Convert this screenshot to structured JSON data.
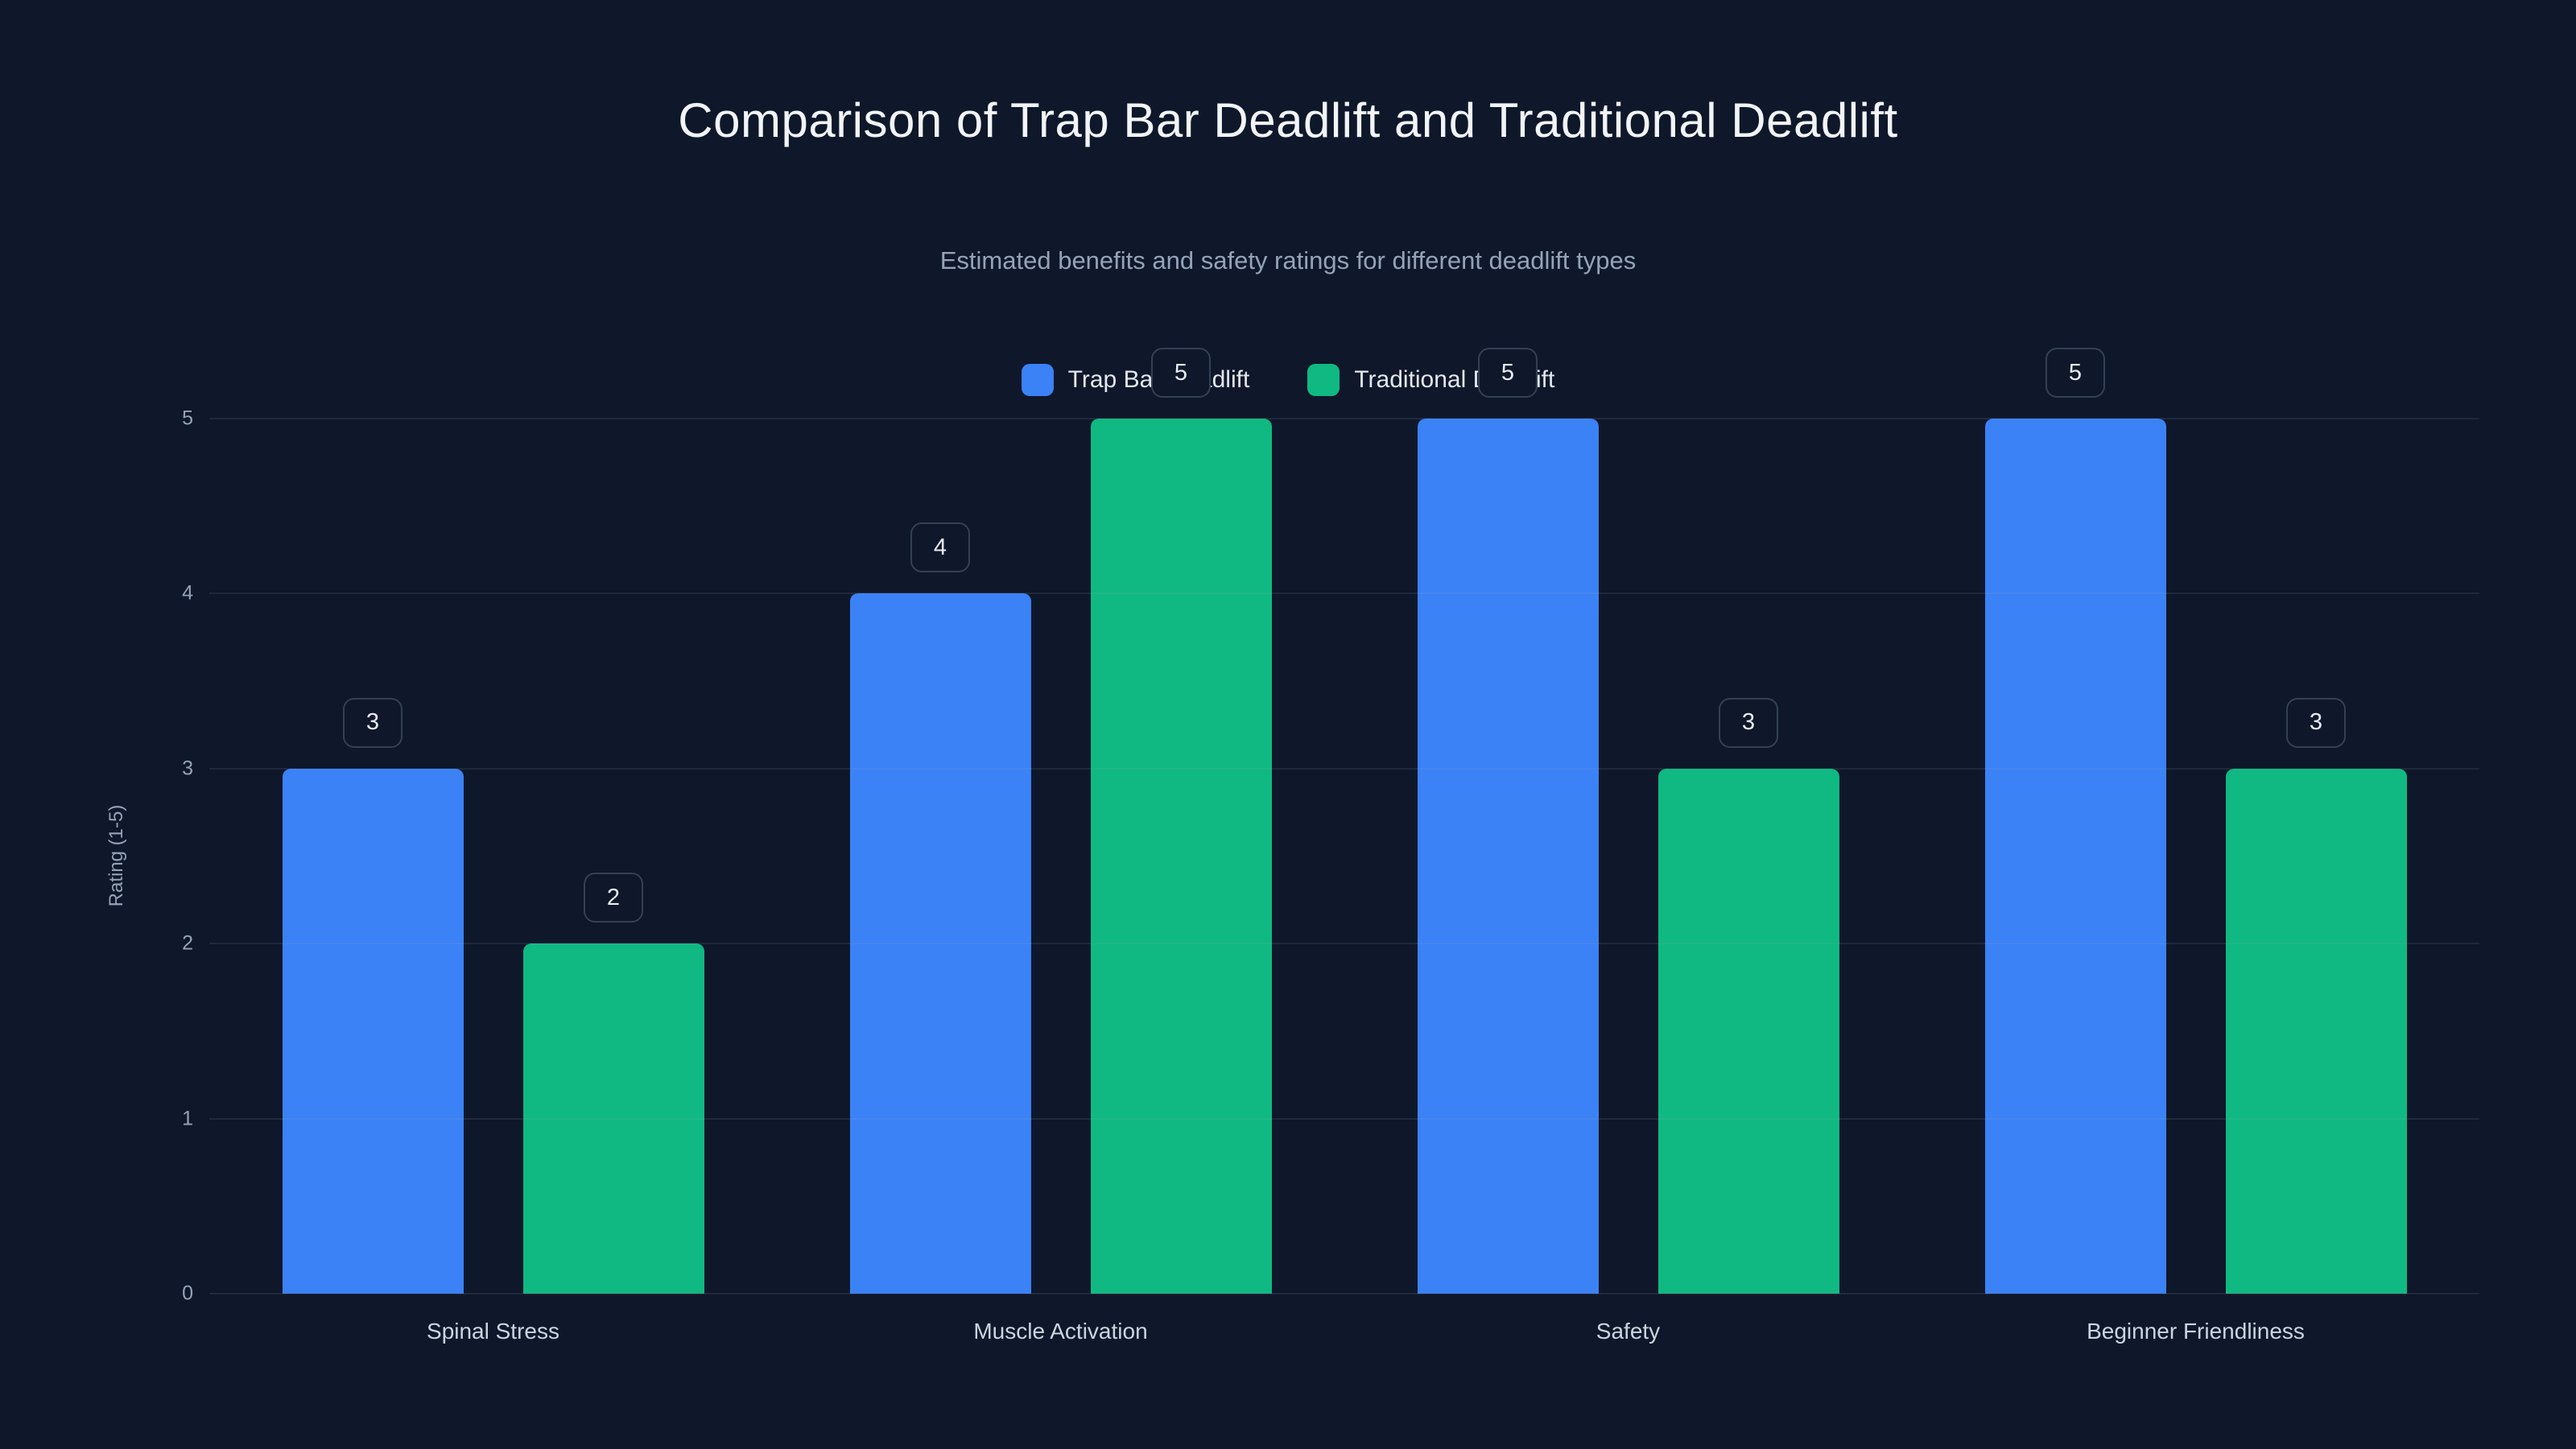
{
  "chart_data": {
    "type": "bar",
    "title": "Comparison of Trap Bar Deadlift and Traditional Deadlift",
    "subtitle": "Estimated benefits and safety ratings for different deadlift types",
    "xlabel": "",
    "ylabel": "Rating (1-5)",
    "ylim": [
      0,
      5
    ],
    "yticks": [
      0,
      1,
      2,
      3,
      4,
      5
    ],
    "grid": true,
    "legend_position": "top",
    "categories": [
      "Spinal Stress",
      "Muscle Activation",
      "Safety",
      "Beginner Friendliness"
    ],
    "series": [
      {
        "name": "Trap Bar Deadlift",
        "color": "#3b82f6",
        "values": [
          3,
          4,
          5,
          5
        ]
      },
      {
        "name": "Traditional Deadlift",
        "color": "#10b981",
        "values": [
          2,
          5,
          3,
          3
        ]
      }
    ],
    "value_labels_shown": true
  },
  "colors": {
    "background": "#0f172a",
    "grid": "rgba(148,163,184,0.13)",
    "title_text": "#f1f5f9",
    "muted_text": "#94a3b8",
    "label_box_border": "#334155",
    "series_blue": "#3b82f6",
    "series_green": "#10b981"
  }
}
